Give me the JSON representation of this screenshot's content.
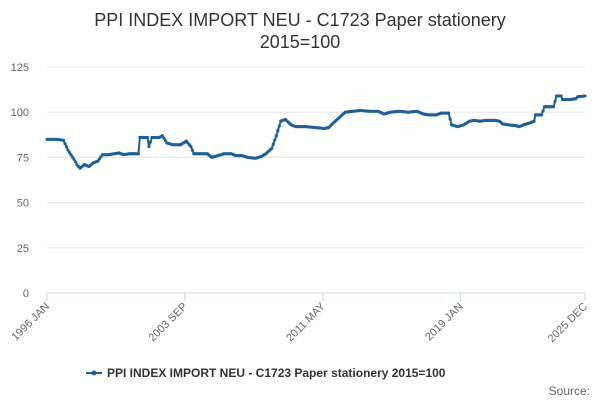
{
  "chart_data": {
    "type": "line",
    "title_lines": [
      "PPI INDEX IMPORT NEU - C1723 Paper stationery",
      "2015=100"
    ],
    "xlabel": "",
    "ylabel": "",
    "ylim": [
      0,
      125
    ],
    "yticks": [
      0,
      25,
      50,
      75,
      100,
      125
    ],
    "xlim": [
      "1996-01",
      "2025-12"
    ],
    "xticks": [
      {
        "date": "1996-01",
        "label": "1996 JAN"
      },
      {
        "date": "2003-09",
        "label": "2003 SEP"
      },
      {
        "date": "2011-05",
        "label": "2011 MAY"
      },
      {
        "date": "2019-01",
        "label": "2019 JAN"
      },
      {
        "date": "2025-12",
        "label": "2025 DEC"
      }
    ],
    "grid": true,
    "legend_position": "bottom",
    "color": "#206095",
    "series": [
      {
        "name": "PPI INDEX IMPORT NEU - C1723 Paper stationery 2015=100",
        "points": [
          [
            "1996-01",
            85
          ],
          [
            "1996-07",
            85
          ],
          [
            "1996-12",
            84.5
          ],
          [
            "1997-03",
            79
          ],
          [
            "1997-07",
            74
          ],
          [
            "1997-09",
            71
          ],
          [
            "1997-11",
            69
          ],
          [
            "1998-02",
            71
          ],
          [
            "1998-05",
            70
          ],
          [
            "1998-08",
            72
          ],
          [
            "1998-11",
            73
          ],
          [
            "1999-02",
            76.5
          ],
          [
            "1999-06",
            76.5
          ],
          [
            "1999-10",
            77
          ],
          [
            "2000-01",
            77.5
          ],
          [
            "2000-04",
            76.5
          ],
          [
            "2000-08",
            77
          ],
          [
            "2000-12",
            77
          ],
          [
            "2001-02",
            77
          ],
          [
            "2001-03",
            86
          ],
          [
            "2001-08",
            86
          ],
          [
            "2001-09",
            81
          ],
          [
            "2001-11",
            86
          ],
          [
            "2002-04",
            86
          ],
          [
            "2002-06",
            87
          ],
          [
            "2002-09",
            83
          ],
          [
            "2003-01",
            82
          ],
          [
            "2003-06",
            82
          ],
          [
            "2003-10",
            84
          ],
          [
            "2004-01",
            81
          ],
          [
            "2004-03",
            77
          ],
          [
            "2004-08",
            77
          ],
          [
            "2004-12",
            77
          ],
          [
            "2005-03",
            75
          ],
          [
            "2005-07",
            76
          ],
          [
            "2005-11",
            77
          ],
          [
            "2006-04",
            77
          ],
          [
            "2006-07",
            76
          ],
          [
            "2006-11",
            76
          ],
          [
            "2007-03",
            75
          ],
          [
            "2007-08",
            74.5
          ],
          [
            "2007-12",
            75.5
          ],
          [
            "2008-03",
            77
          ],
          [
            "2008-07",
            80
          ],
          [
            "2008-10",
            87
          ],
          [
            "2009-01",
            95
          ],
          [
            "2009-04",
            96
          ],
          [
            "2009-08",
            93
          ],
          [
            "2009-11",
            92
          ],
          [
            "2010-06",
            92
          ],
          [
            "2010-12",
            91.5
          ],
          [
            "2011-06",
            91
          ],
          [
            "2011-09",
            91.5
          ],
          [
            "2011-12",
            94
          ],
          [
            "2012-04",
            97
          ],
          [
            "2012-08",
            100
          ],
          [
            "2013-01",
            100.5
          ],
          [
            "2013-06",
            101
          ],
          [
            "2013-12",
            100.5
          ],
          [
            "2014-06",
            100.5
          ],
          [
            "2014-10",
            99
          ],
          [
            "2015-02",
            100
          ],
          [
            "2015-08",
            100.5
          ],
          [
            "2016-02",
            100
          ],
          [
            "2016-08",
            100.5
          ],
          [
            "2016-12",
            99
          ],
          [
            "2017-04",
            98.5
          ],
          [
            "2017-09",
            98.5
          ],
          [
            "2017-12",
            99.5
          ],
          [
            "2018-05",
            99.5
          ],
          [
            "2018-07",
            93
          ],
          [
            "2018-11",
            92
          ],
          [
            "2019-03",
            93
          ],
          [
            "2019-07",
            95
          ],
          [
            "2019-10",
            95.5
          ],
          [
            "2020-02",
            95
          ],
          [
            "2020-06",
            95.5
          ],
          [
            "2020-12",
            95.5
          ],
          [
            "2021-03",
            95
          ],
          [
            "2021-05",
            93.5
          ],
          [
            "2021-09",
            93
          ],
          [
            "2022-02",
            92.5
          ],
          [
            "2022-04",
            92
          ],
          [
            "2022-07",
            93
          ],
          [
            "2022-11",
            94
          ],
          [
            "2023-02",
            95
          ],
          [
            "2023-03",
            98.5
          ],
          [
            "2023-07",
            98.5
          ],
          [
            "2023-09",
            103
          ],
          [
            "2024-03",
            103
          ],
          [
            "2024-05",
            109
          ],
          [
            "2024-08",
            109
          ],
          [
            "2024-09",
            107
          ],
          [
            "2025-02",
            107
          ],
          [
            "2025-06",
            107.5
          ],
          [
            "2025-07",
            108.5
          ],
          [
            "2025-12",
            109
          ]
        ]
      }
    ],
    "credits": "Source:"
  }
}
